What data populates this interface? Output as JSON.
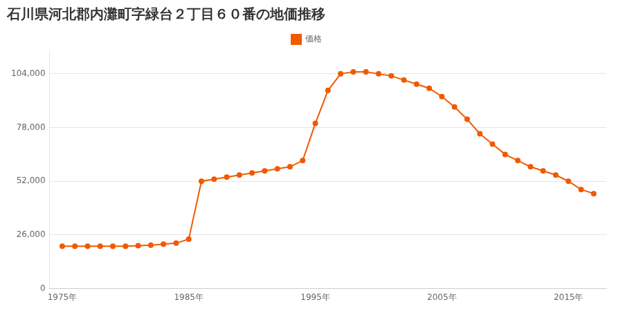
{
  "chart_data": {
    "type": "line",
    "title": "石川県河北郡内灘町字緑台２丁目６０番の地価推移",
    "x": [
      1975,
      1976,
      1977,
      1978,
      1979,
      1980,
      1981,
      1982,
      1983,
      1984,
      1985,
      1986,
      1987,
      1988,
      1989,
      1990,
      1991,
      1992,
      1993,
      1994,
      1995,
      1996,
      1997,
      1998,
      1999,
      2000,
      2001,
      2002,
      2003,
      2004,
      2005,
      2006,
      2007,
      2008,
      2009,
      2010,
      2011,
      2012,
      2013,
      2014,
      2015,
      2016,
      2017
    ],
    "series": [
      {
        "name": "価格",
        "color": "#f05a00",
        "marker": "circle",
        "line_style": "solid",
        "values": [
          20500,
          20500,
          20500,
          20500,
          20500,
          20500,
          20800,
          21000,
          21500,
          22000,
          24000,
          52000,
          53000,
          54000,
          55000,
          56000,
          57000,
          58000,
          59000,
          62000,
          80000,
          96000,
          104000,
          105000,
          105000,
          104000,
          103000,
          101000,
          99000,
          97000,
          93000,
          88000,
          82000,
          75000,
          70000,
          65000,
          62000,
          59000,
          57000,
          55000,
          52000,
          48000,
          46000
        ]
      }
    ],
    "xlim": [
      1974,
      2018
    ],
    "xticks": [
      {
        "value": 1975,
        "label": "1975年"
      },
      {
        "value": 1985,
        "label": "1985年"
      },
      {
        "value": 1995,
        "label": "1995年"
      },
      {
        "value": 2005,
        "label": "2005年"
      },
      {
        "value": 2015,
        "label": "2015年"
      }
    ],
    "ylim": [
      0,
      115000
    ],
    "yticks": [
      0,
      {
        "value": 26000,
        "label": "26,000"
      },
      {
        "value": 52000,
        "label": "52,000"
      },
      {
        "value": 78000,
        "label": "78,000"
      },
      {
        "value": 104000,
        "label": "104,000"
      }
    ],
    "grid": "y",
    "legend": "top"
  }
}
